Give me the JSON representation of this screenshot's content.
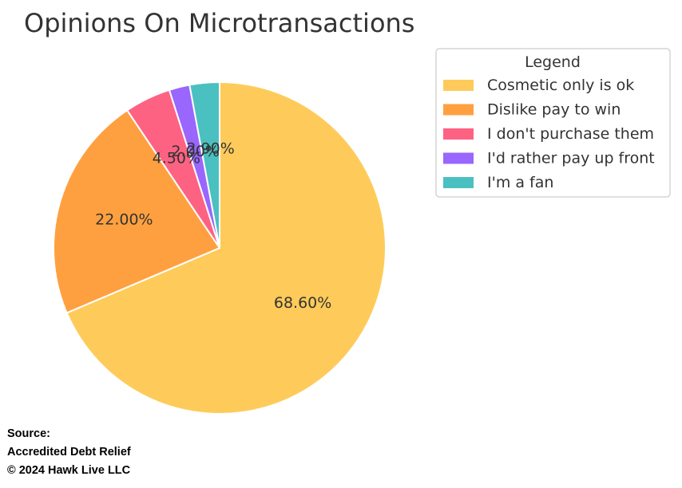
{
  "chart_data": {
    "type": "pie",
    "title": "Opinions On Microtransactions",
    "slices": [
      {
        "label": "Cosmetic only is ok",
        "value": 68.6,
        "display": "68.60%",
        "color": "#FECB5A"
      },
      {
        "label": "Dislike pay to win",
        "value": 22.0,
        "display": "22.00%",
        "color": "#FFA040"
      },
      {
        "label": "I don't purchase them",
        "value": 4.5,
        "display": "4.50%",
        "color": "#FE6283"
      },
      {
        "label": "I'd rather pay up front",
        "value": 2.0,
        "display": "2.00%",
        "color": "#9966FE"
      },
      {
        "label": "I'm a fan",
        "value": 2.9,
        "display": "2.90%",
        "color": "#4BC0C0"
      }
    ],
    "start_angle_deg": 90,
    "direction": "clockwise",
    "legend": {
      "title": "Legend",
      "position": "top-right"
    }
  },
  "source": {
    "heading": "Source:",
    "line1": "Accredited Debt Relief",
    "line2": "© 2024 Hawk Live LLC"
  }
}
